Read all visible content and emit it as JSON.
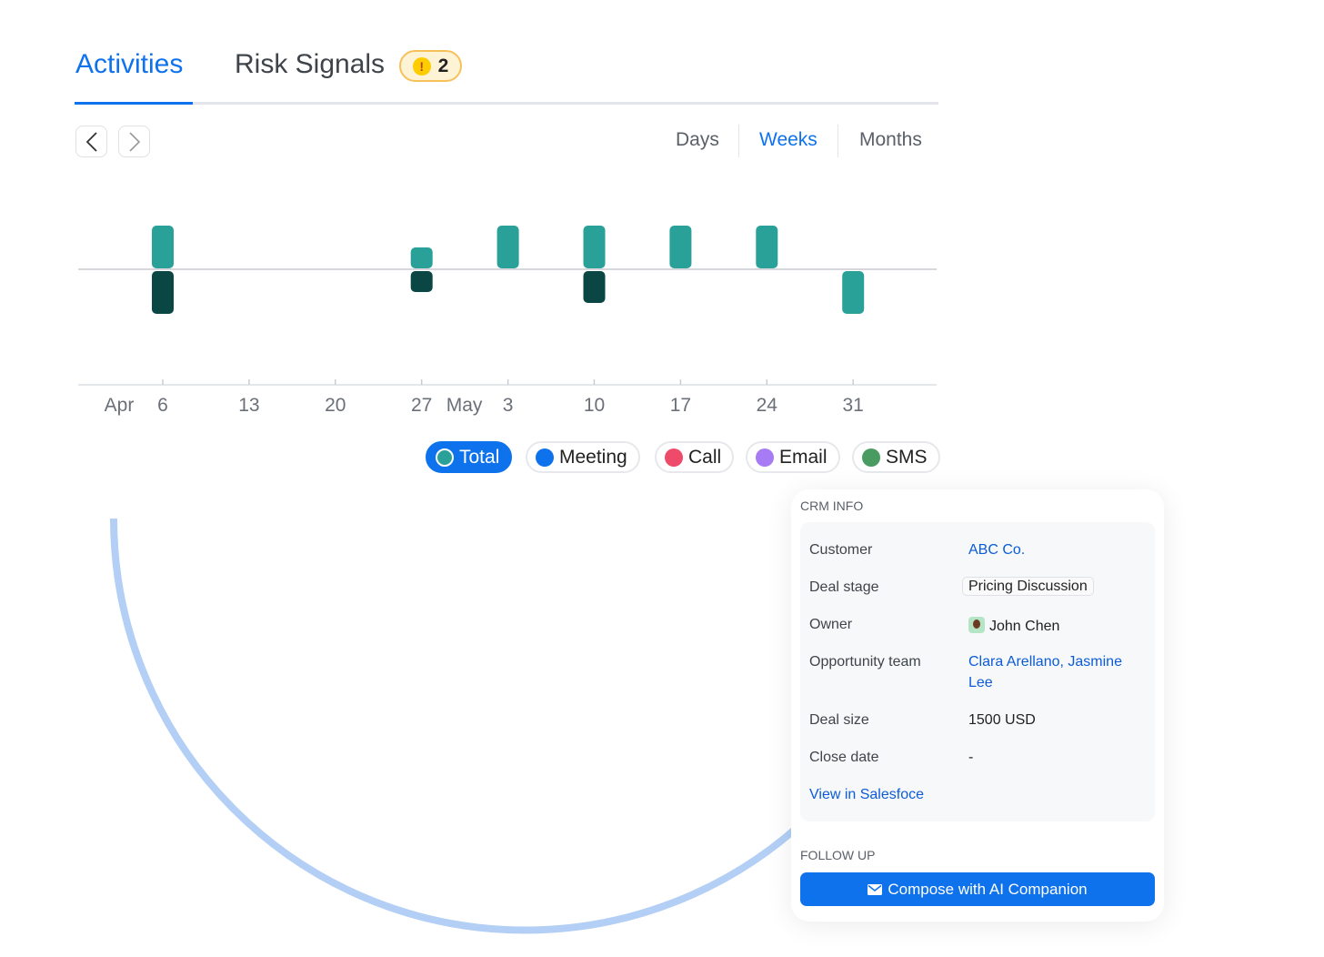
{
  "tabs": [
    {
      "label": "Activities",
      "active": true
    },
    {
      "label": "Risk Signals",
      "badge": "2",
      "badge_icon": "warning-icon"
    }
  ],
  "nav": {
    "prev_icon": "chevron-left-icon",
    "next_icon": "chevron-right-icon"
  },
  "range": {
    "options": [
      "Days",
      "Weeks",
      "Months"
    ],
    "selected": "Weeks"
  },
  "chart_data": {
    "type": "bar",
    "categories": [
      "Apr 6",
      "Apr 13",
      "Apr 20",
      "Apr 27",
      "May 3",
      "May 10",
      "May 17",
      "May 24",
      "May 31"
    ],
    "tick_labels": [
      "6",
      "13",
      "20",
      "27",
      "3",
      "10",
      "17",
      "24",
      "31"
    ],
    "month_labels": [
      {
        "label": "Apr",
        "at": "Apr 6"
      },
      {
        "label": "May",
        "at": "May 3"
      }
    ],
    "series": [
      {
        "values": [
          4,
          0,
          0,
          2,
          4,
          4,
          4,
          4,
          0
        ],
        "direction": "up",
        "color": "#2aa198"
      },
      {
        "values": [
          4,
          0,
          0,
          2,
          0,
          3,
          0,
          0,
          4
        ],
        "direction": "down",
        "color": "#0a4744",
        "point_colors": {
          "8": "#2aa198"
        }
      }
    ],
    "grid": false
  },
  "legend": [
    {
      "label": "Total",
      "color": "#2aa198",
      "active": true
    },
    {
      "label": "Meeting",
      "color": "#0e72ed"
    },
    {
      "label": "Call",
      "color": "#ee4b6a"
    },
    {
      "label": "Email",
      "color": "#a77bf3"
    },
    {
      "label": "SMS",
      "color": "#4a9b62"
    }
  ],
  "crm": {
    "title": "CRM INFO",
    "rows": [
      {
        "label": "Customer",
        "value": "ABC Co."
      },
      {
        "label": "Deal stage",
        "value": "Pricing Discussion"
      },
      {
        "label": "Owner",
        "value": "John Chen"
      },
      {
        "label": "Opportunity team",
        "value": "Clara Arellano, Jasmine",
        "value2": "Lee"
      },
      {
        "label": "Deal size",
        "value": "1500 USD"
      },
      {
        "label": "Close date",
        "value": "-"
      }
    ],
    "link": "View in Salesfoce",
    "follow_title": "FOLLOW UP",
    "compose": "Compose with AI Companion",
    "compose_icon": "envelope-icon"
  },
  "colors": {
    "accent": "#0e72ed",
    "arc": "#b3cff5"
  }
}
